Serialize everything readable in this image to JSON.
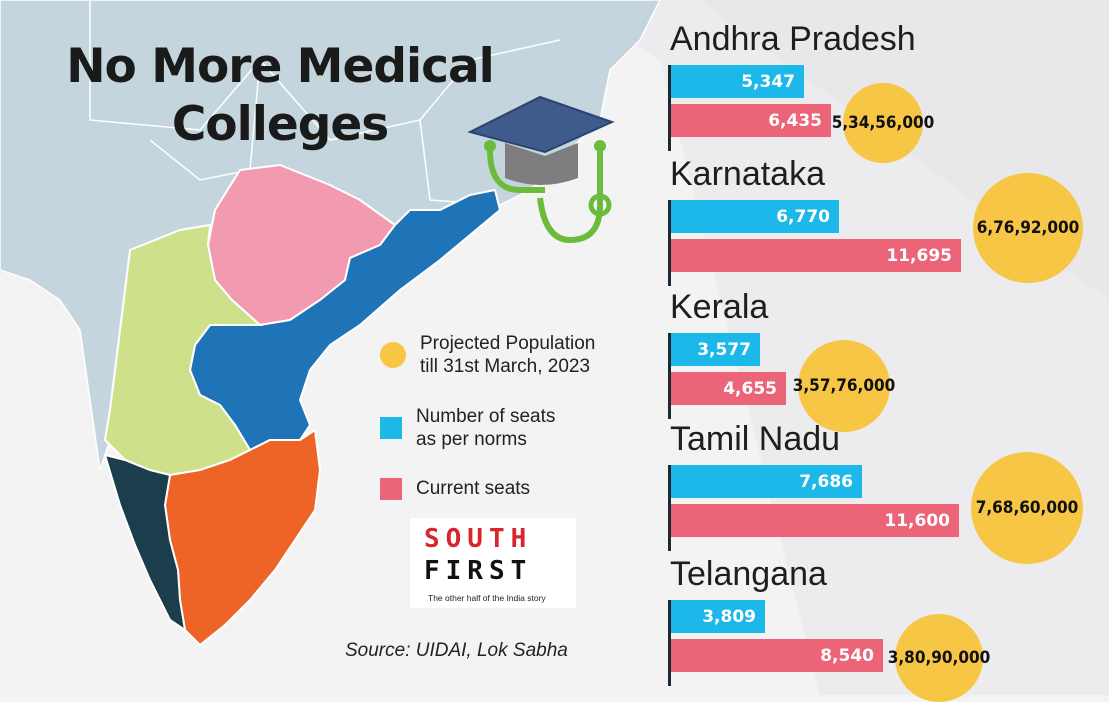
{
  "title_line1": "No More Medical",
  "title_line2": "Colleges",
  "legend": [
    {
      "label": "Projected Population\ntill 31st March, 2023",
      "color": "#f6c644",
      "shape": "circle"
    },
    {
      "label": "Number of seats\nas per norms",
      "color": "#1db8ea",
      "shape": "square"
    },
    {
      "label": "Current seats",
      "color": "#eb6478",
      "shape": "square"
    }
  ],
  "logo": {
    "line1": "SOUTH",
    "line2": "FIRST",
    "tagline": "The other half of the India story"
  },
  "source": "Source: UIDAI, Lok Sabha",
  "colors": {
    "norm": "#1db8ea",
    "current": "#eb6478",
    "population": "#f6c644",
    "andhra": "#1f73b7",
    "karnataka": "#cfe08b",
    "telangana": "#f29ab0",
    "tamil_nadu": "#ee6326",
    "kerala": "#1c3d4b"
  },
  "chart_data": {
    "type": "bar",
    "orientation": "horizontal",
    "categories": [
      "Andhra Pradesh",
      "Karnataka",
      "Kerala",
      "Tamil Nadu",
      "Telangana"
    ],
    "series": [
      {
        "name": "Number of seats as per norms",
        "values": [
          5347,
          6770,
          3577,
          7686,
          3809
        ],
        "labels": [
          "5,347",
          "6,770",
          "3,577",
          "7,686",
          "3,809"
        ]
      },
      {
        "name": "Current seats",
        "values": [
          6435,
          11695,
          4655,
          11600,
          8540
        ],
        "labels": [
          "6,435",
          "11,695",
          "4,655",
          "11,600",
          "8,540"
        ]
      }
    ],
    "population": {
      "name": "Projected Population till 31st March, 2023",
      "values": [
        53456000,
        67692000,
        35776000,
        76860000,
        38090000
      ],
      "labels": [
        "5,34,56,000",
        "6,76,92,000",
        "3,57,76,000",
        "7,68,60,000",
        "3,80,90,000"
      ]
    }
  }
}
